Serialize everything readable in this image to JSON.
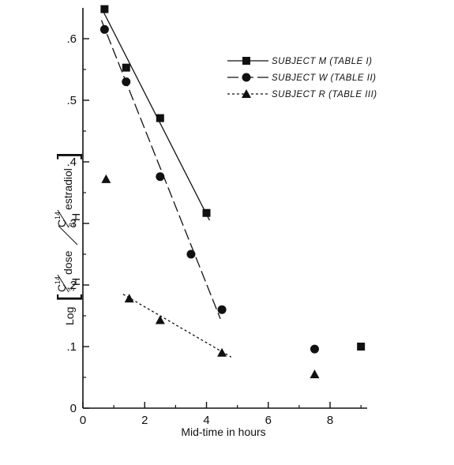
{
  "chart_data": {
    "type": "scatter",
    "xlabel": "Mid-time in hours",
    "ylabel": "Log[C14/H3 dose / C14/H3 estradiol]",
    "ylabel_parts": {
      "log": "Log",
      "num_c": "C",
      "num_c_sup": "14",
      "num_h": "H",
      "num_h_sup": "3",
      "num_word": "dose",
      "den_c": "C",
      "den_c_sup": "14",
      "den_h": "H",
      "den_h_sup": "3",
      "den_word": "estradiol"
    },
    "xlim": [
      0,
      9.2
    ],
    "ylim": [
      0,
      0.65
    ],
    "xticks": [
      0,
      2,
      4,
      6,
      8
    ],
    "xtick_labels": [
      "0",
      "2",
      "4",
      "6",
      "8"
    ],
    "yticks": [
      0,
      0.1,
      0.2,
      0.3,
      0.4,
      0.5,
      0.6
    ],
    "ytick_labels": [
      "0",
      ".1",
      ".2",
      ".3",
      ".4",
      ".5",
      ".6"
    ],
    "legend_position": "top-right",
    "series": [
      {
        "name": "SUBJECT M (TABLE I)",
        "marker": "square",
        "line_style": "solid",
        "x": [
          0.7,
          1.4,
          2.5,
          4.0,
          9.0
        ],
        "y": [
          0.648,
          0.553,
          0.471,
          0.317,
          0.1
        ],
        "fit": {
          "x": [
            0.6,
            4.1
          ],
          "y": [
            0.65,
            0.305
          ]
        }
      },
      {
        "name": "SUBJECT W (TABLE II)",
        "marker": "circle",
        "line_style": "dashed",
        "x": [
          0.7,
          1.4,
          2.5,
          3.5,
          4.5,
          7.5
        ],
        "y": [
          0.615,
          0.53,
          0.376,
          0.25,
          0.16,
          0.096
        ],
        "fit": {
          "x": [
            0.6,
            4.45
          ],
          "y": [
            0.63,
            0.145
          ]
        }
      },
      {
        "name": "SUBJECT R (TABLE III)",
        "marker": "triangle",
        "line_style": "dotted",
        "x": [
          0.75,
          1.5,
          2.5,
          4.5,
          7.5
        ],
        "y": [
          0.372,
          0.178,
          0.143,
          0.09,
          0.055
        ],
        "fit": {
          "x": [
            1.3,
            4.8
          ],
          "y": [
            0.185,
            0.083
          ]
        }
      }
    ]
  }
}
